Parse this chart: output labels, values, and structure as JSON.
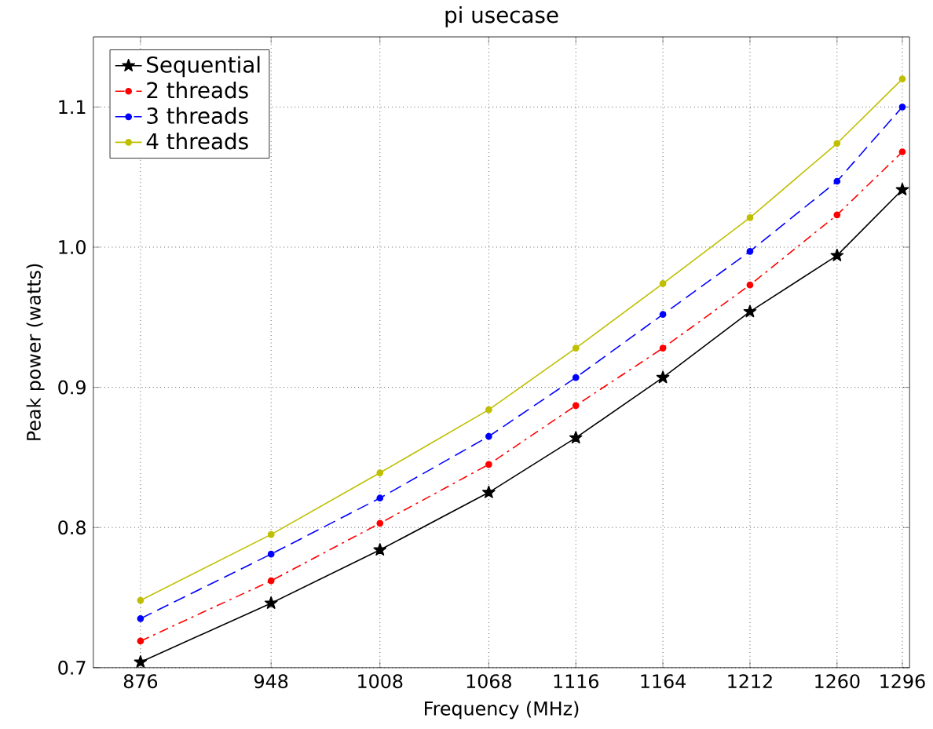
{
  "chart_data": {
    "type": "line",
    "title": "pi usecase",
    "xlabel": "Frequency (MHz)",
    "ylabel": "Peak power (watts)",
    "x": [
      876,
      948,
      1008,
      1068,
      1116,
      1164,
      1212,
      1260,
      1296
    ],
    "series": [
      {
        "name": "Sequential",
        "color": "#000000",
        "marker": "star",
        "line_style": "solid",
        "values": [
          0.704,
          0.746,
          0.784,
          0.825,
          0.864,
          0.907,
          0.954,
          0.994,
          1.041
        ]
      },
      {
        "name": "2 threads",
        "color": "#ff0000",
        "marker": "circle",
        "line_style": "dashdot",
        "values": [
          0.719,
          0.762,
          0.803,
          0.845,
          0.887,
          0.928,
          0.973,
          1.023,
          1.068
        ]
      },
      {
        "name": "3 threads",
        "color": "#0000ff",
        "marker": "circle",
        "line_style": "dashed",
        "values": [
          0.735,
          0.781,
          0.821,
          0.865,
          0.907,
          0.952,
          0.997,
          1.047,
          1.1
        ]
      },
      {
        "name": "4 threads",
        "color": "#bfbf00",
        "marker": "circle",
        "line_style": "solid",
        "values": [
          0.748,
          0.795,
          0.839,
          0.884,
          0.928,
          0.974,
          1.021,
          1.074,
          1.12
        ]
      }
    ],
    "xlim": [
      850,
      1300
    ],
    "ylim": [
      0.7,
      1.15
    ],
    "xticks": [
      876,
      948,
      1008,
      1068,
      1116,
      1164,
      1212,
      1260,
      1296
    ],
    "yticks": [
      {
        "value": 0.7,
        "label": "0.7"
      },
      {
        "value": 0.8,
        "label": "0.8"
      },
      {
        "value": 0.9,
        "label": "0.9"
      },
      {
        "value": 1.0,
        "label": "1.0"
      },
      {
        "value": 1.1,
        "label": "1.1"
      }
    ],
    "grid": true,
    "legend": "top left"
  }
}
